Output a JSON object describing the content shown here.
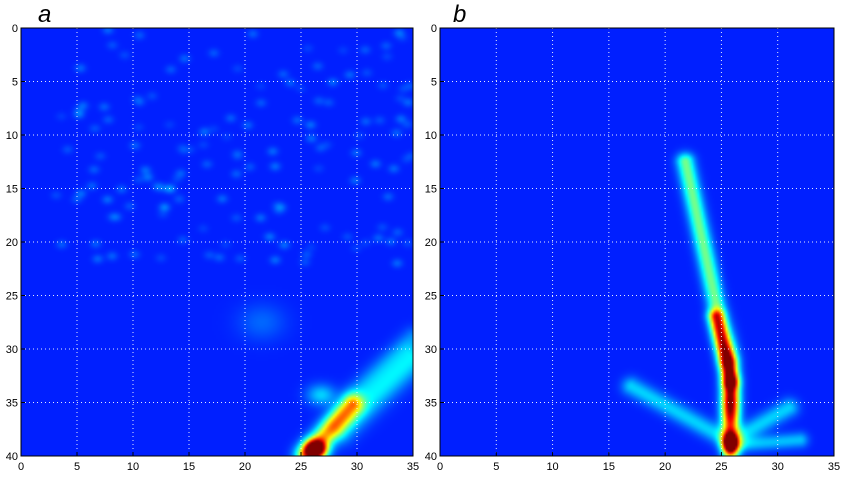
{
  "chart_data": [
    {
      "type": "heatmap",
      "panel_label": "a",
      "xlim": [
        0,
        35
      ],
      "ylim": [
        0,
        40
      ],
      "y_reversed": true,
      "x_ticks": [
        "0",
        "5",
        "10",
        "15",
        "20",
        "25",
        "30",
        "35"
      ],
      "y_ticks": [
        "0",
        "5",
        "10",
        "15",
        "20",
        "25",
        "30",
        "35",
        "40"
      ],
      "grid": true,
      "colormap": "jet",
      "background_color": "#00007a",
      "features": [
        {
          "kind": "peak",
          "x": 26.3,
          "y": 39.4,
          "intensity": 1.0,
          "sx": 0.7,
          "sy": 0.6
        },
        {
          "kind": "ridge",
          "x0": 25.5,
          "y0": 40,
          "x1": 29.5,
          "y1": 35.2,
          "intensity": 0.55,
          "width": 0.7
        },
        {
          "kind": "ridge",
          "x0": 28.5,
          "y0": 37.5,
          "x1": 35,
          "y1": 31.0,
          "intensity": 0.22,
          "width": 0.9
        },
        {
          "kind": "ridge",
          "x0": 30.0,
          "y0": 34.0,
          "x1": 35,
          "y1": 29.0,
          "intensity": 0.12,
          "width": 0.7
        },
        {
          "kind": "blob",
          "x": 26.8,
          "y": 34.3,
          "intensity": 0.2,
          "sx": 0.9,
          "sy": 0.7
        },
        {
          "kind": "blob",
          "x": 21.5,
          "y": 27.5,
          "intensity": 0.08,
          "sx": 1.5,
          "sy": 1.2
        }
      ],
      "speckle": {
        "count": 140,
        "x_range": [
          3,
          35
        ],
        "y_range": [
          0,
          22
        ],
        "intensity": 0.07
      }
    },
    {
      "type": "heatmap",
      "panel_label": "b",
      "xlim": [
        0,
        35
      ],
      "ylim": [
        0,
        40
      ],
      "y_reversed": true,
      "x_ticks": [
        "0",
        "5",
        "10",
        "15",
        "20",
        "25",
        "30",
        "35"
      ],
      "y_ticks": [
        "0",
        "5",
        "10",
        "15",
        "20",
        "25",
        "30",
        "35",
        "40"
      ],
      "grid": true,
      "colormap": "jet",
      "background_color": "#00007a",
      "features": [
        {
          "kind": "peak",
          "x": 25.8,
          "y": 35.0,
          "intensity": 1.0,
          "sx": 0.55,
          "sy": 2.6
        },
        {
          "kind": "peak",
          "x": 25.8,
          "y": 39.0,
          "intensity": 0.75,
          "sx": 0.5,
          "sy": 0.8
        },
        {
          "kind": "ridge",
          "x0": 21.8,
          "y0": 12.5,
          "x1": 25.6,
          "y1": 31.0,
          "intensity": 0.38,
          "width": 0.55
        },
        {
          "kind": "ridge",
          "x0": 24.5,
          "y0": 27.0,
          "x1": 25.8,
          "y1": 33.0,
          "intensity": 0.55,
          "width": 0.5
        },
        {
          "kind": "ridge",
          "x0": 17.0,
          "y0": 33.5,
          "x1": 25.5,
          "y1": 38.5,
          "intensity": 0.2,
          "width": 0.6
        },
        {
          "kind": "ridge",
          "x0": 26.0,
          "y0": 38.5,
          "x1": 31.0,
          "y1": 35.5,
          "intensity": 0.2,
          "width": 0.6
        },
        {
          "kind": "ridge",
          "x0": 26.0,
          "y0": 39.0,
          "x1": 32.0,
          "y1": 38.5,
          "intensity": 0.18,
          "width": 0.5
        }
      ],
      "speckle": {
        "count": 0,
        "x_range": [
          0,
          35
        ],
        "y_range": [
          0,
          40
        ],
        "intensity": 0.0
      }
    }
  ]
}
